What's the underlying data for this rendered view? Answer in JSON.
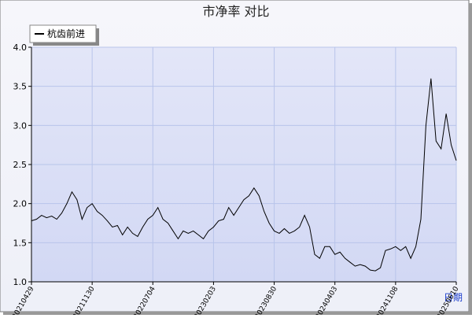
{
  "chart_data": {
    "type": "line",
    "title": "市净率  对比",
    "x_label": "日期",
    "categories": [
      "20210429",
      null,
      null,
      null,
      null,
      null,
      null,
      null,
      null,
      null,
      null,
      null,
      "20211130",
      null,
      null,
      null,
      null,
      null,
      null,
      null,
      null,
      null,
      null,
      null,
      "20220704",
      null,
      null,
      null,
      null,
      null,
      null,
      null,
      null,
      null,
      null,
      null,
      "20230203",
      null,
      null,
      null,
      null,
      null,
      null,
      null,
      null,
      null,
      null,
      null,
      "20230830",
      null,
      null,
      null,
      null,
      null,
      null,
      null,
      null,
      null,
      null,
      null,
      "20240403",
      null,
      null,
      null,
      null,
      null,
      null,
      null,
      null,
      null,
      null,
      null,
      "20241108",
      null,
      null,
      null,
      null,
      null,
      null,
      null,
      null,
      null,
      null,
      null,
      "20250610"
    ],
    "series": [
      {
        "name": "杭齿前进",
        "color": "#000000",
        "values": [
          1.78,
          1.8,
          1.85,
          1.82,
          1.84,
          1.8,
          1.88,
          2.0,
          2.15,
          2.05,
          1.8,
          1.95,
          2.0,
          1.9,
          1.85,
          1.78,
          1.7,
          1.72,
          1.6,
          1.7,
          1.62,
          1.58,
          1.7,
          1.8,
          1.85,
          1.95,
          1.8,
          1.75,
          1.65,
          1.55,
          1.65,
          1.62,
          1.65,
          1.6,
          1.55,
          1.65,
          1.7,
          1.78,
          1.8,
          1.95,
          1.85,
          1.95,
          2.05,
          2.1,
          2.2,
          2.1,
          1.9,
          1.75,
          1.65,
          1.62,
          1.68,
          1.62,
          1.65,
          1.7,
          1.85,
          1.7,
          1.35,
          1.3,
          1.45,
          1.45,
          1.35,
          1.38,
          1.3,
          1.25,
          1.2,
          1.22,
          1.2,
          1.15,
          1.14,
          1.18,
          1.4,
          1.42,
          1.45,
          1.4,
          1.45,
          1.3,
          1.45,
          1.8,
          3.0,
          3.6,
          2.8,
          2.7,
          3.15,
          2.75,
          2.55
        ]
      }
    ],
    "ylim": [
      1,
      4
    ],
    "yticks": [
      {
        "value": 1,
        "label": "1.0"
      },
      1.5,
      {
        "value": 2,
        "label": "2.0"
      },
      2.5,
      {
        "value": 3,
        "label": "3.0"
      },
      3.5,
      {
        "value": 4,
        "label": "4.0"
      }
    ],
    "grid": true
  }
}
